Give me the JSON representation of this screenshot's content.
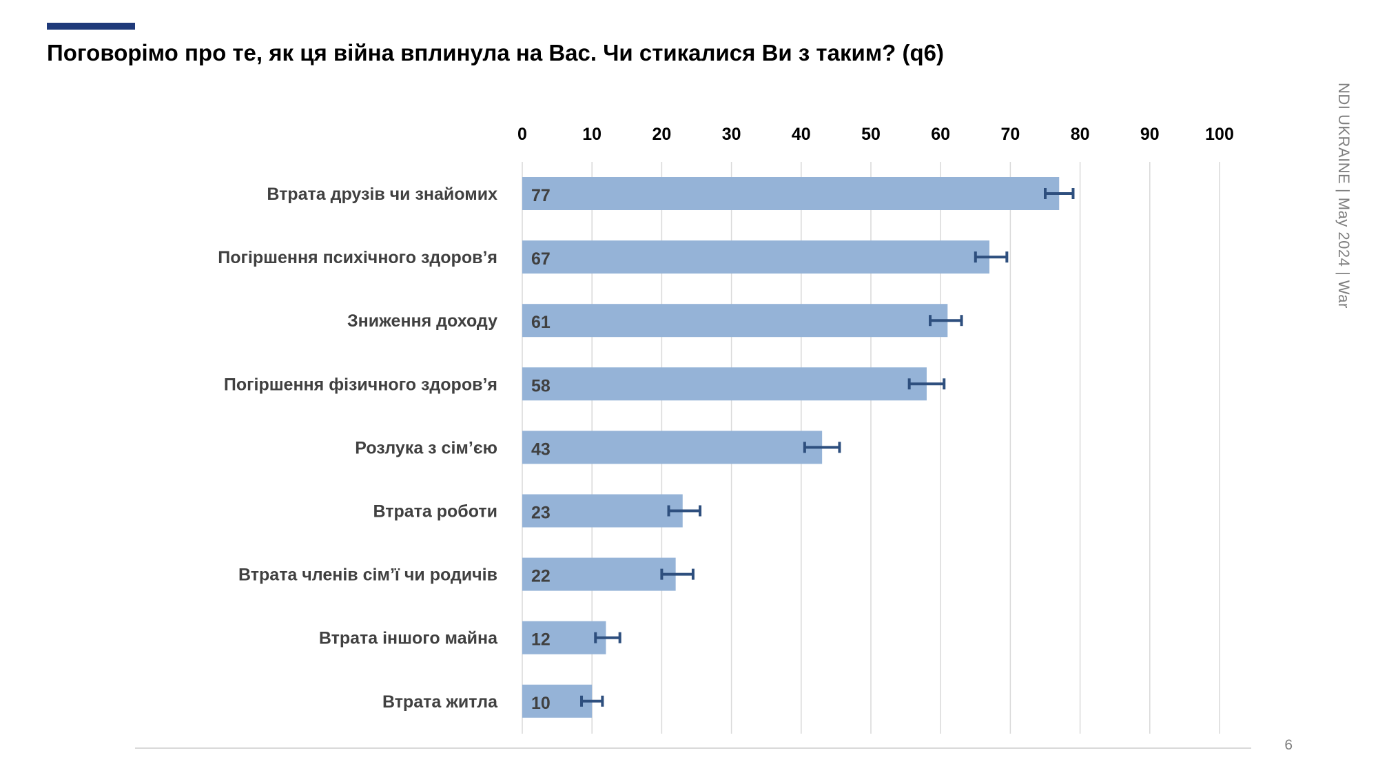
{
  "slide": {
    "title": "Поговорімо про те, як ця війна вплинула на Вас. Чи стикалися Ви з таким?  (q6)",
    "side_label": "NDI UKRAINE  |  May 2024  |  War",
    "page_number": "6"
  },
  "colors": {
    "accent": "#1f3a7a",
    "bar": "#95b3d7",
    "error_bar": "#2e4f7e",
    "grid": "#d9d9d9",
    "footer_line": "#d9d9d9"
  },
  "chart_data": {
    "type": "bar",
    "orientation": "horizontal",
    "title": "",
    "xlabel": "",
    "ylabel": "",
    "xlim": [
      0,
      100
    ],
    "ticks": [
      "0",
      "10",
      "20",
      "30",
      "40",
      "50",
      "60",
      "70",
      "80",
      "90",
      "100"
    ],
    "tick_values": [
      0,
      10,
      20,
      30,
      40,
      50,
      60,
      70,
      80,
      90,
      100
    ],
    "grid": true,
    "axis_position": "top",
    "categories": [
      "Втрата друзів чи знайомих",
      "Погіршення психічного здоров’я",
      "Зниження доходу",
      "Погіршення фізичного здоров’я",
      "Розлука з сім’єю",
      "Втрата роботи",
      "Втрата членів сім’ї чи родичів",
      "Втрата іншого майна",
      "Втрата житла"
    ],
    "values": [
      77,
      67,
      61,
      58,
      43,
      23,
      22,
      12,
      10
    ],
    "data_labels": [
      "77",
      "67",
      "61",
      "58",
      "43",
      "23",
      "22",
      "12",
      "10"
    ],
    "error_bars": [
      [
        75,
        79
      ],
      [
        65,
        69.5
      ],
      [
        58.5,
        63
      ],
      [
        55.5,
        60.5
      ],
      [
        40.5,
        45.5
      ],
      [
        21,
        25.5
      ],
      [
        20,
        24.5
      ],
      [
        10.5,
        14
      ],
      [
        8.5,
        11.5
      ]
    ]
  }
}
